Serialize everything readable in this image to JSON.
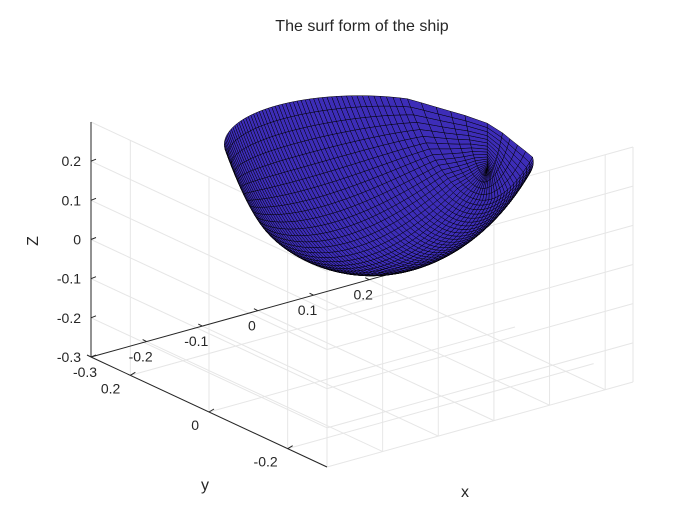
{
  "chart_data": {
    "type": "surface",
    "title": "The surf form of the ship",
    "xlabel": "x",
    "ylabel": "y",
    "zlabel": "Z",
    "x_ticks": [
      "-0.3",
      "-0.2",
      "-0.1",
      "0",
      "0.1",
      "0.2"
    ],
    "y_ticks": [
      "-0.2",
      "0",
      "0.2"
    ],
    "z_ticks": [
      "-0.3",
      "-0.2",
      "-0.1",
      "0",
      "0.1",
      "0.2"
    ],
    "xlim": [
      -0.3,
      0.25
    ],
    "ylim": [
      -0.3,
      0.3
    ],
    "zlim": [
      -0.3,
      0.3
    ],
    "grid": true,
    "surface_color": "#3d2db8",
    "edge_color": "#000000",
    "surface_description": "parabolic hull surface z = x^2 + y^2 form, bottom near z=-0.05, rim near z=0.25"
  }
}
